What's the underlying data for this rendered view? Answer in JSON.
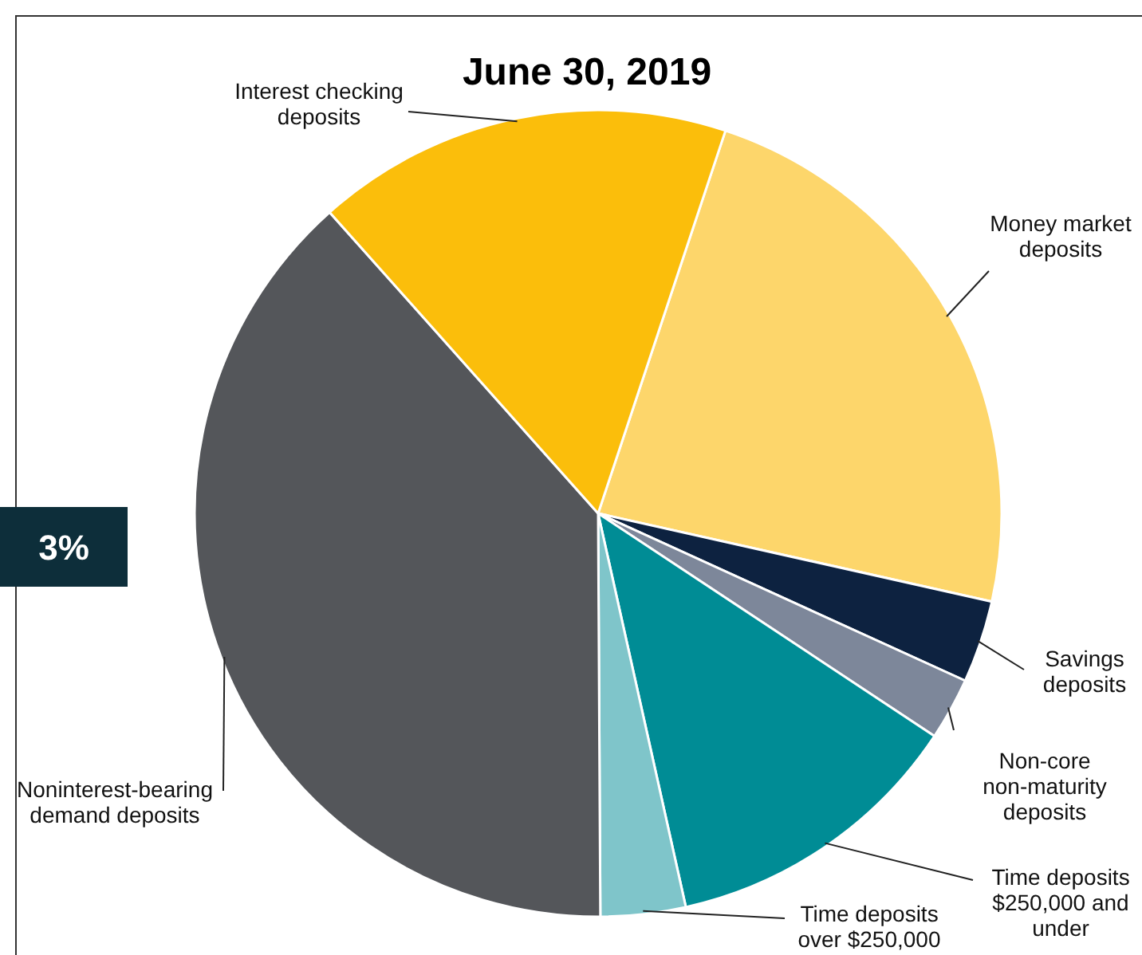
{
  "chart_data": {
    "type": "pie",
    "title": "June 30, 2019",
    "categories": [
      "Money market deposits",
      "Savings deposits",
      "Non-core non-maturity deposits",
      "Time deposits $250,000 and under",
      "Time deposits over $250,000",
      "Noninterest-bearing demand deposits",
      "Interest checking deposits"
    ],
    "values": [
      23.4,
      3.3,
      2.5,
      12.2,
      3.4,
      38.5,
      16.7
    ],
    "colors": [
      "#fdd66b",
      "#0d2240",
      "#7d879a",
      "#008c95",
      "#7fc5ca",
      "#54565a",
      "#fbbe0b"
    ],
    "annotations": [
      "3%"
    ]
  }
}
